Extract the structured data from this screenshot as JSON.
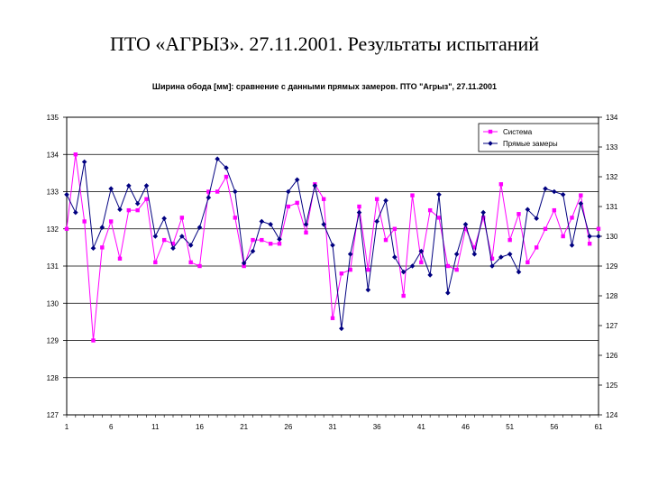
{
  "slide_title": "ПТО «АГРЫЗ». 27.11.2001. Результаты испытаний",
  "chart_data": {
    "type": "line",
    "title": "Ширина обода [мм]: сравнение с данными прямых замеров. ПТО \"Агрыз\", 27.11.2001",
    "x_tick_labels": [
      "1",
      "6",
      "11",
      "16",
      "21",
      "26",
      "31",
      "36",
      "41",
      "46",
      "51",
      "56",
      "61"
    ],
    "x": [
      1,
      2,
      3,
      4,
      5,
      6,
      7,
      8,
      9,
      10,
      11,
      12,
      13,
      14,
      15,
      16,
      17,
      18,
      19,
      20,
      21,
      22,
      23,
      24,
      25,
      26,
      27,
      28,
      29,
      30,
      31,
      32,
      33,
      34,
      35,
      36,
      37,
      38,
      39,
      40,
      41,
      42,
      43,
      44,
      45,
      46,
      47,
      48,
      49,
      50,
      51,
      52,
      53,
      54,
      55,
      56,
      57,
      58,
      59,
      60,
      61
    ],
    "xlim": [
      1,
      61
    ],
    "y_left": {
      "lim": [
        127,
        135
      ],
      "ticks": [
        127,
        128,
        129,
        130,
        131,
        132,
        133,
        134,
        135
      ]
    },
    "y_right": {
      "lim": [
        124,
        134
      ],
      "ticks": [
        124,
        125,
        126,
        127,
        128,
        129,
        130,
        131,
        132,
        133,
        134
      ]
    },
    "grid": "horizontal",
    "legend_position": "top-right",
    "series": [
      {
        "name": "Система",
        "axis": "left",
        "color": "#ff00ff",
        "marker": "square",
        "values": [
          132.0,
          134.0,
          132.2,
          129.0,
          131.5,
          132.2,
          131.2,
          132.5,
          132.5,
          132.8,
          131.1,
          131.7,
          131.6,
          132.3,
          131.1,
          131.0,
          133.0,
          133.0,
          133.4,
          132.3,
          131.0,
          131.7,
          131.7,
          131.6,
          131.6,
          132.6,
          132.7,
          131.9,
          133.2,
          132.8,
          129.6,
          130.8,
          130.9,
          132.6,
          130.9,
          132.8,
          131.7,
          132.0,
          130.2,
          132.9,
          131.1,
          132.5,
          132.3,
          131.0,
          130.9,
          132.0,
          131.5,
          132.3,
          131.2,
          133.2,
          131.7,
          132.4,
          131.1,
          131.5,
          132.0,
          132.5,
          131.8,
          132.3,
          132.9,
          131.6,
          132.0
        ],
        "line_to_x": 60
      },
      {
        "name": "Прямые замеры",
        "axis": "right",
        "color": "#000080",
        "marker": "diamond",
        "values": [
          131.4,
          130.8,
          132.5,
          129.6,
          130.3,
          131.6,
          130.9,
          131.7,
          131.1,
          131.7,
          130.0,
          130.6,
          129.6,
          130.0,
          129.7,
          130.3,
          131.3,
          132.6,
          132.3,
          131.5,
          129.1,
          129.5,
          130.5,
          130.4,
          129.9,
          131.5,
          131.9,
          130.4,
          131.7,
          130.4,
          129.7,
          126.9,
          129.4,
          130.8,
          128.2,
          130.5,
          131.2,
          129.3,
          128.8,
          129.0,
          129.5,
          128.7,
          131.4,
          128.1,
          129.4,
          130.4,
          129.4,
          130.8,
          129.0,
          129.3,
          129.4,
          128.8,
          130.9,
          130.6,
          131.6,
          131.5,
          131.4,
          129.7,
          131.1,
          130.0,
          130.0
        ],
        "line_to_x": 61
      }
    ]
  }
}
